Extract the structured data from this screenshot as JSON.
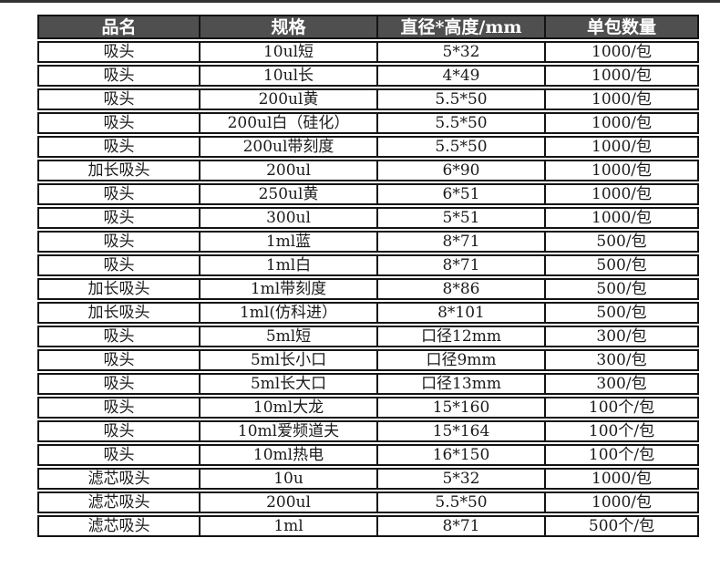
{
  "page": {
    "background_color": "#ffffff",
    "top_divider_color": "#333333"
  },
  "table_style": {
    "header_bg_color": "#4f4f4f",
    "header_text_color": "#ffffff",
    "border_color": "#141414",
    "body_text_color": "#1a1a1a"
  },
  "chart_data": {
    "type": "table",
    "columns": [
      "品名",
      "规格",
      "直径*高度/mm",
      "单包数量"
    ],
    "rows": [
      [
        "吸头",
        "10ul短",
        "5*32",
        "1000/包"
      ],
      [
        "吸头",
        "10ul长",
        "4*49",
        "1000/包"
      ],
      [
        "吸头",
        "200ul黄",
        "5.5*50",
        "1000/包"
      ],
      [
        "吸头",
        "200ul白（硅化）",
        "5.5*50",
        "1000/包"
      ],
      [
        "吸头",
        "200ul带刻度",
        "5.5*50",
        "1000/包"
      ],
      [
        "加长吸头",
        "200ul",
        "6*90",
        "1000/包"
      ],
      [
        "吸头",
        "250ul黄",
        "6*51",
        "1000/包"
      ],
      [
        "吸头",
        "300ul",
        "5*51",
        "1000/包"
      ],
      [
        "吸头",
        "1ml蓝",
        "8*71",
        "500/包"
      ],
      [
        "吸头",
        "1ml白",
        "8*71",
        "500/包"
      ],
      [
        "加长吸头",
        "1ml带刻度",
        "8*86",
        "500/包"
      ],
      [
        "加长吸头",
        "1ml(仿科进）",
        "8*101",
        "500/包"
      ],
      [
        "吸头",
        "5ml短",
        "口径12mm",
        "300/包"
      ],
      [
        "吸头",
        "5ml长小口",
        "口径9mm",
        "300/包"
      ],
      [
        "吸头",
        "5ml长大口",
        "口径13mm",
        "300/包"
      ],
      [
        "吸头",
        "10ml大龙",
        "15*160",
        "100个/包"
      ],
      [
        "吸头",
        "10ml爱频道夫",
        "15*164",
        "100个/包"
      ],
      [
        "吸头",
        "10ml热电",
        "16*150",
        "100个/包"
      ],
      [
        "滤芯吸头",
        "10u",
        "5*32",
        "1000/包"
      ],
      [
        "滤芯吸头",
        "200ul",
        "5.5*50",
        "1000/包"
      ],
      [
        "滤芯吸头",
        "1ml",
        "8*71",
        "500个/包"
      ]
    ]
  }
}
